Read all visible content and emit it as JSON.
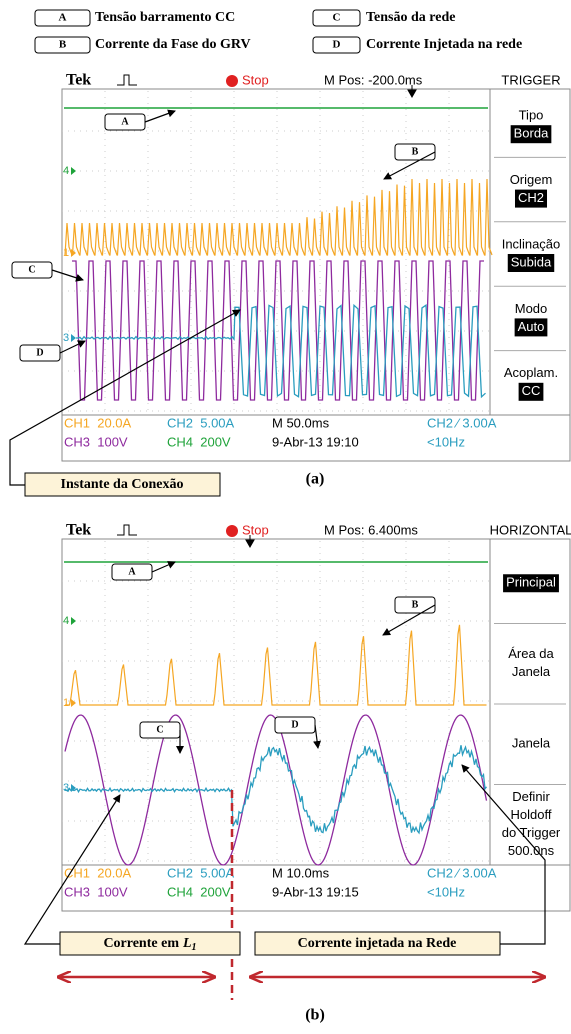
{
  "legend": [
    {
      "key": "A",
      "label": "Tensão barramento CC"
    },
    {
      "key": "B",
      "label": "Corrente da Fase do GRV"
    },
    {
      "key": "C",
      "label": "Tensão da rede"
    },
    {
      "key": "D",
      "label": "Corrente Injetada na rede"
    }
  ],
  "panels": [
    {
      "caption": "(a)",
      "header": {
        "brand": "Tek",
        "status": "Stop",
        "position": "M Pos: -200.0ms",
        "menu_title": "TRIGGER"
      },
      "menu": [
        {
          "lines": [
            "Tipo"
          ],
          "value": "Borda"
        },
        {
          "lines": [
            "Origem"
          ],
          "value": "CH2"
        },
        {
          "lines": [
            "Inclinação"
          ],
          "value": "Subida"
        },
        {
          "lines": [
            "Modo"
          ],
          "value": "Auto"
        },
        {
          "lines": [
            "Acoplam."
          ],
          "value": "CC"
        }
      ],
      "channel_markers": [
        "4",
        "1",
        "3"
      ],
      "footer": [
        [
          "CH1  20.0A",
          "CH2  5.00A",
          "M 50.0ms",
          "CH2 ⁄ 3.00A"
        ],
        [
          "CH3  100V",
          "CH4  200V",
          "9-Abr-13 19:10",
          "<10Hz"
        ]
      ],
      "trace_labels": [
        "A",
        "B",
        "C",
        "D"
      ],
      "annotations": [
        {
          "text": "Instante da Conexão"
        }
      ]
    },
    {
      "caption": "(b)",
      "header": {
        "brand": "Tek",
        "status": "Stop",
        "position": "M Pos: 6.400ms",
        "menu_title": "HORIZONTAL"
      },
      "menu": [
        {
          "lines": [],
          "value": "Principal"
        },
        {
          "lines": [
            "Área da",
            "Janela"
          ]
        },
        {
          "lines": [
            "Janela"
          ]
        },
        {
          "lines": [
            "Definir",
            "Holdoff",
            "do Trigger",
            "500.0ns"
          ]
        }
      ],
      "channel_markers": [
        "4",
        "1",
        "3"
      ],
      "footer": [
        [
          "CH1  20.0A",
          "CH2  5.00A",
          "M 10.0ms",
          "CH2 ⁄ 3.00A"
        ],
        [
          "CH3  100V",
          "CH4  200V",
          "9-Abr-13 19:15",
          "<10Hz"
        ]
      ],
      "trace_labels": [
        "A",
        "B",
        "C",
        "D"
      ],
      "annotations": [
        {
          "text": "Corrente em",
          "symbol": "L",
          "subscript": "1"
        },
        {
          "text": "Corrente injetada na Rede"
        }
      ]
    }
  ]
}
